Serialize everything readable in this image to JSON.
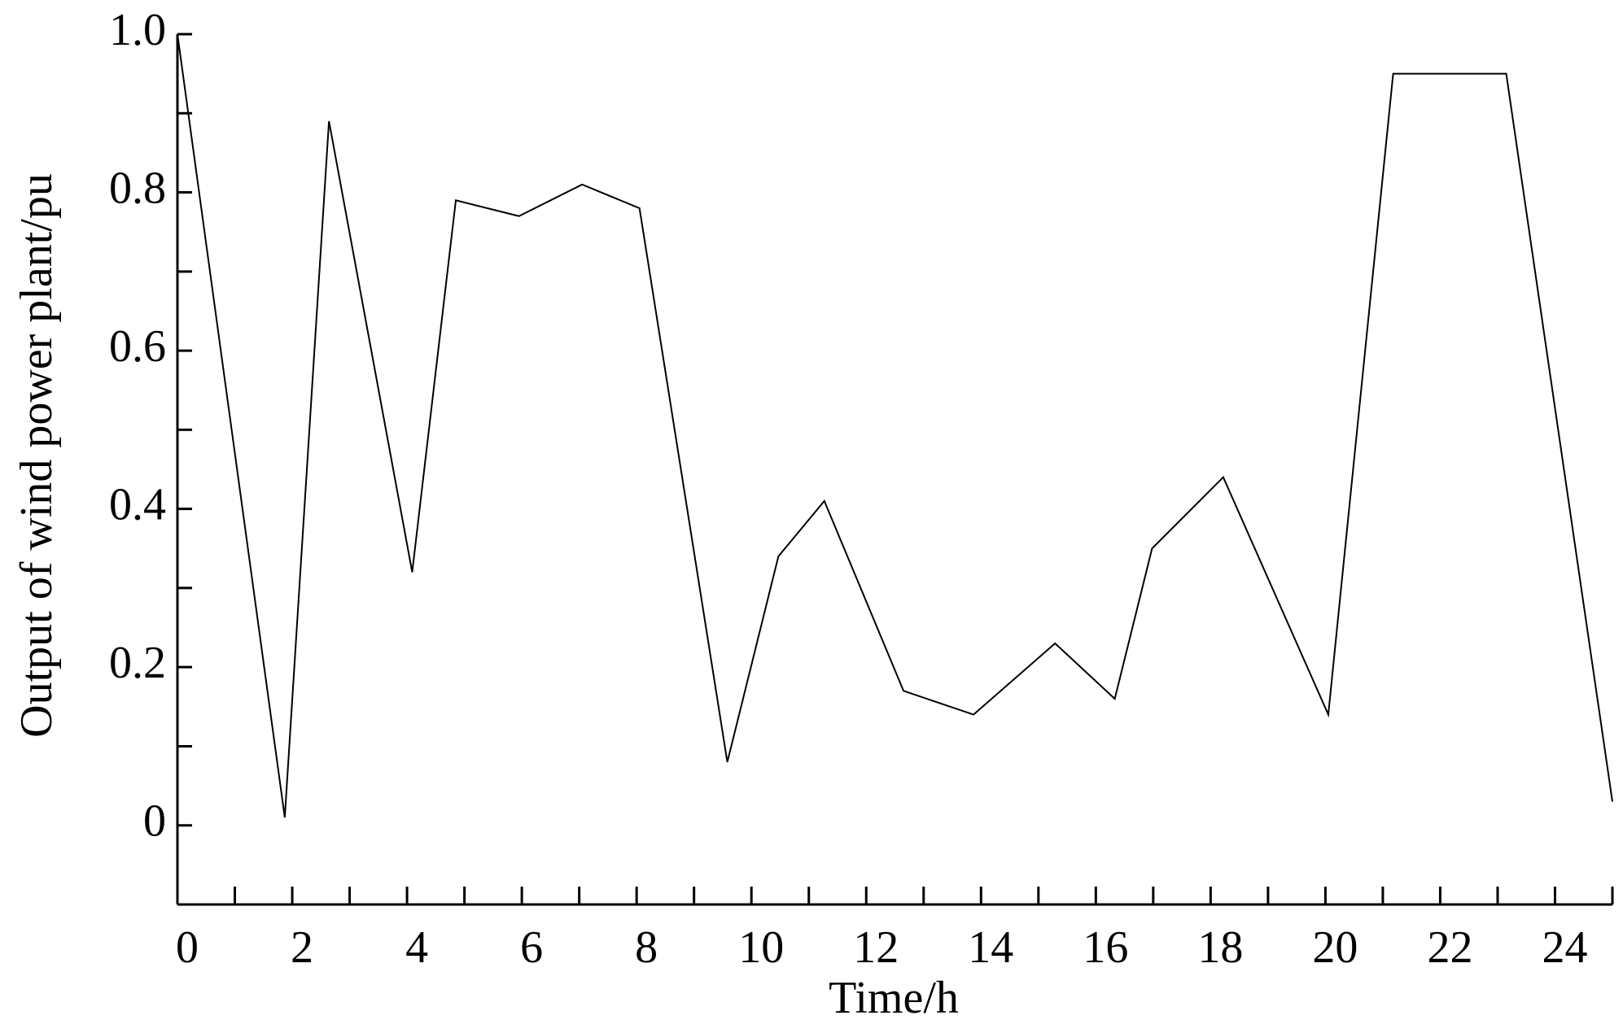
{
  "chart_data": {
    "type": "line",
    "x_label": "Time/h",
    "y_label": "Output of wind power plant/pu",
    "x": [
      0,
      1.87,
      2.64,
      4.09,
      4.85,
      5.95,
      7.05,
      8.05,
      9.58,
      10.47,
      11.27,
      12.65,
      13.87,
      15.29,
      16.33,
      16.98,
      18.22,
      20.05,
      21.18,
      23.15,
      25
    ],
    "series": [
      {
        "color": "#000000",
        "values": [
          1.0,
          0.01,
          0.89,
          0.32,
          0.79,
          0.77,
          0.81,
          0.78,
          0.08,
          0.34,
          0.41,
          0.17,
          0.14,
          0.23,
          0.16,
          0.35,
          0.44,
          0.14,
          0.95,
          0.95,
          0.03
        ]
      }
    ],
    "xlim": [
      0,
      25
    ],
    "xticks": [
      0,
      2,
      4,
      6,
      8,
      10,
      12,
      14,
      16,
      18,
      20,
      22,
      24
    ],
    "xminorticks": [
      1,
      3,
      5,
      7,
      9,
      11,
      13,
      15,
      17,
      19,
      21,
      23,
      25
    ],
    "ylim": [
      -0.1,
      1.0
    ],
    "yticks": [
      0,
      {
        "value": 0.2,
        "label": "0.2"
      },
      {
        "value": 0.4,
        "label": "0.4"
      },
      {
        "value": 0.6,
        "label": "0.6"
      },
      {
        "value": 0.8,
        "label": "0.8"
      },
      {
        "value": 1.0,
        "label": "1.0"
      }
    ],
    "yminorticks": [
      0.1,
      0.3,
      0.5,
      0.7,
      0.9
    ],
    "grid": false
  }
}
